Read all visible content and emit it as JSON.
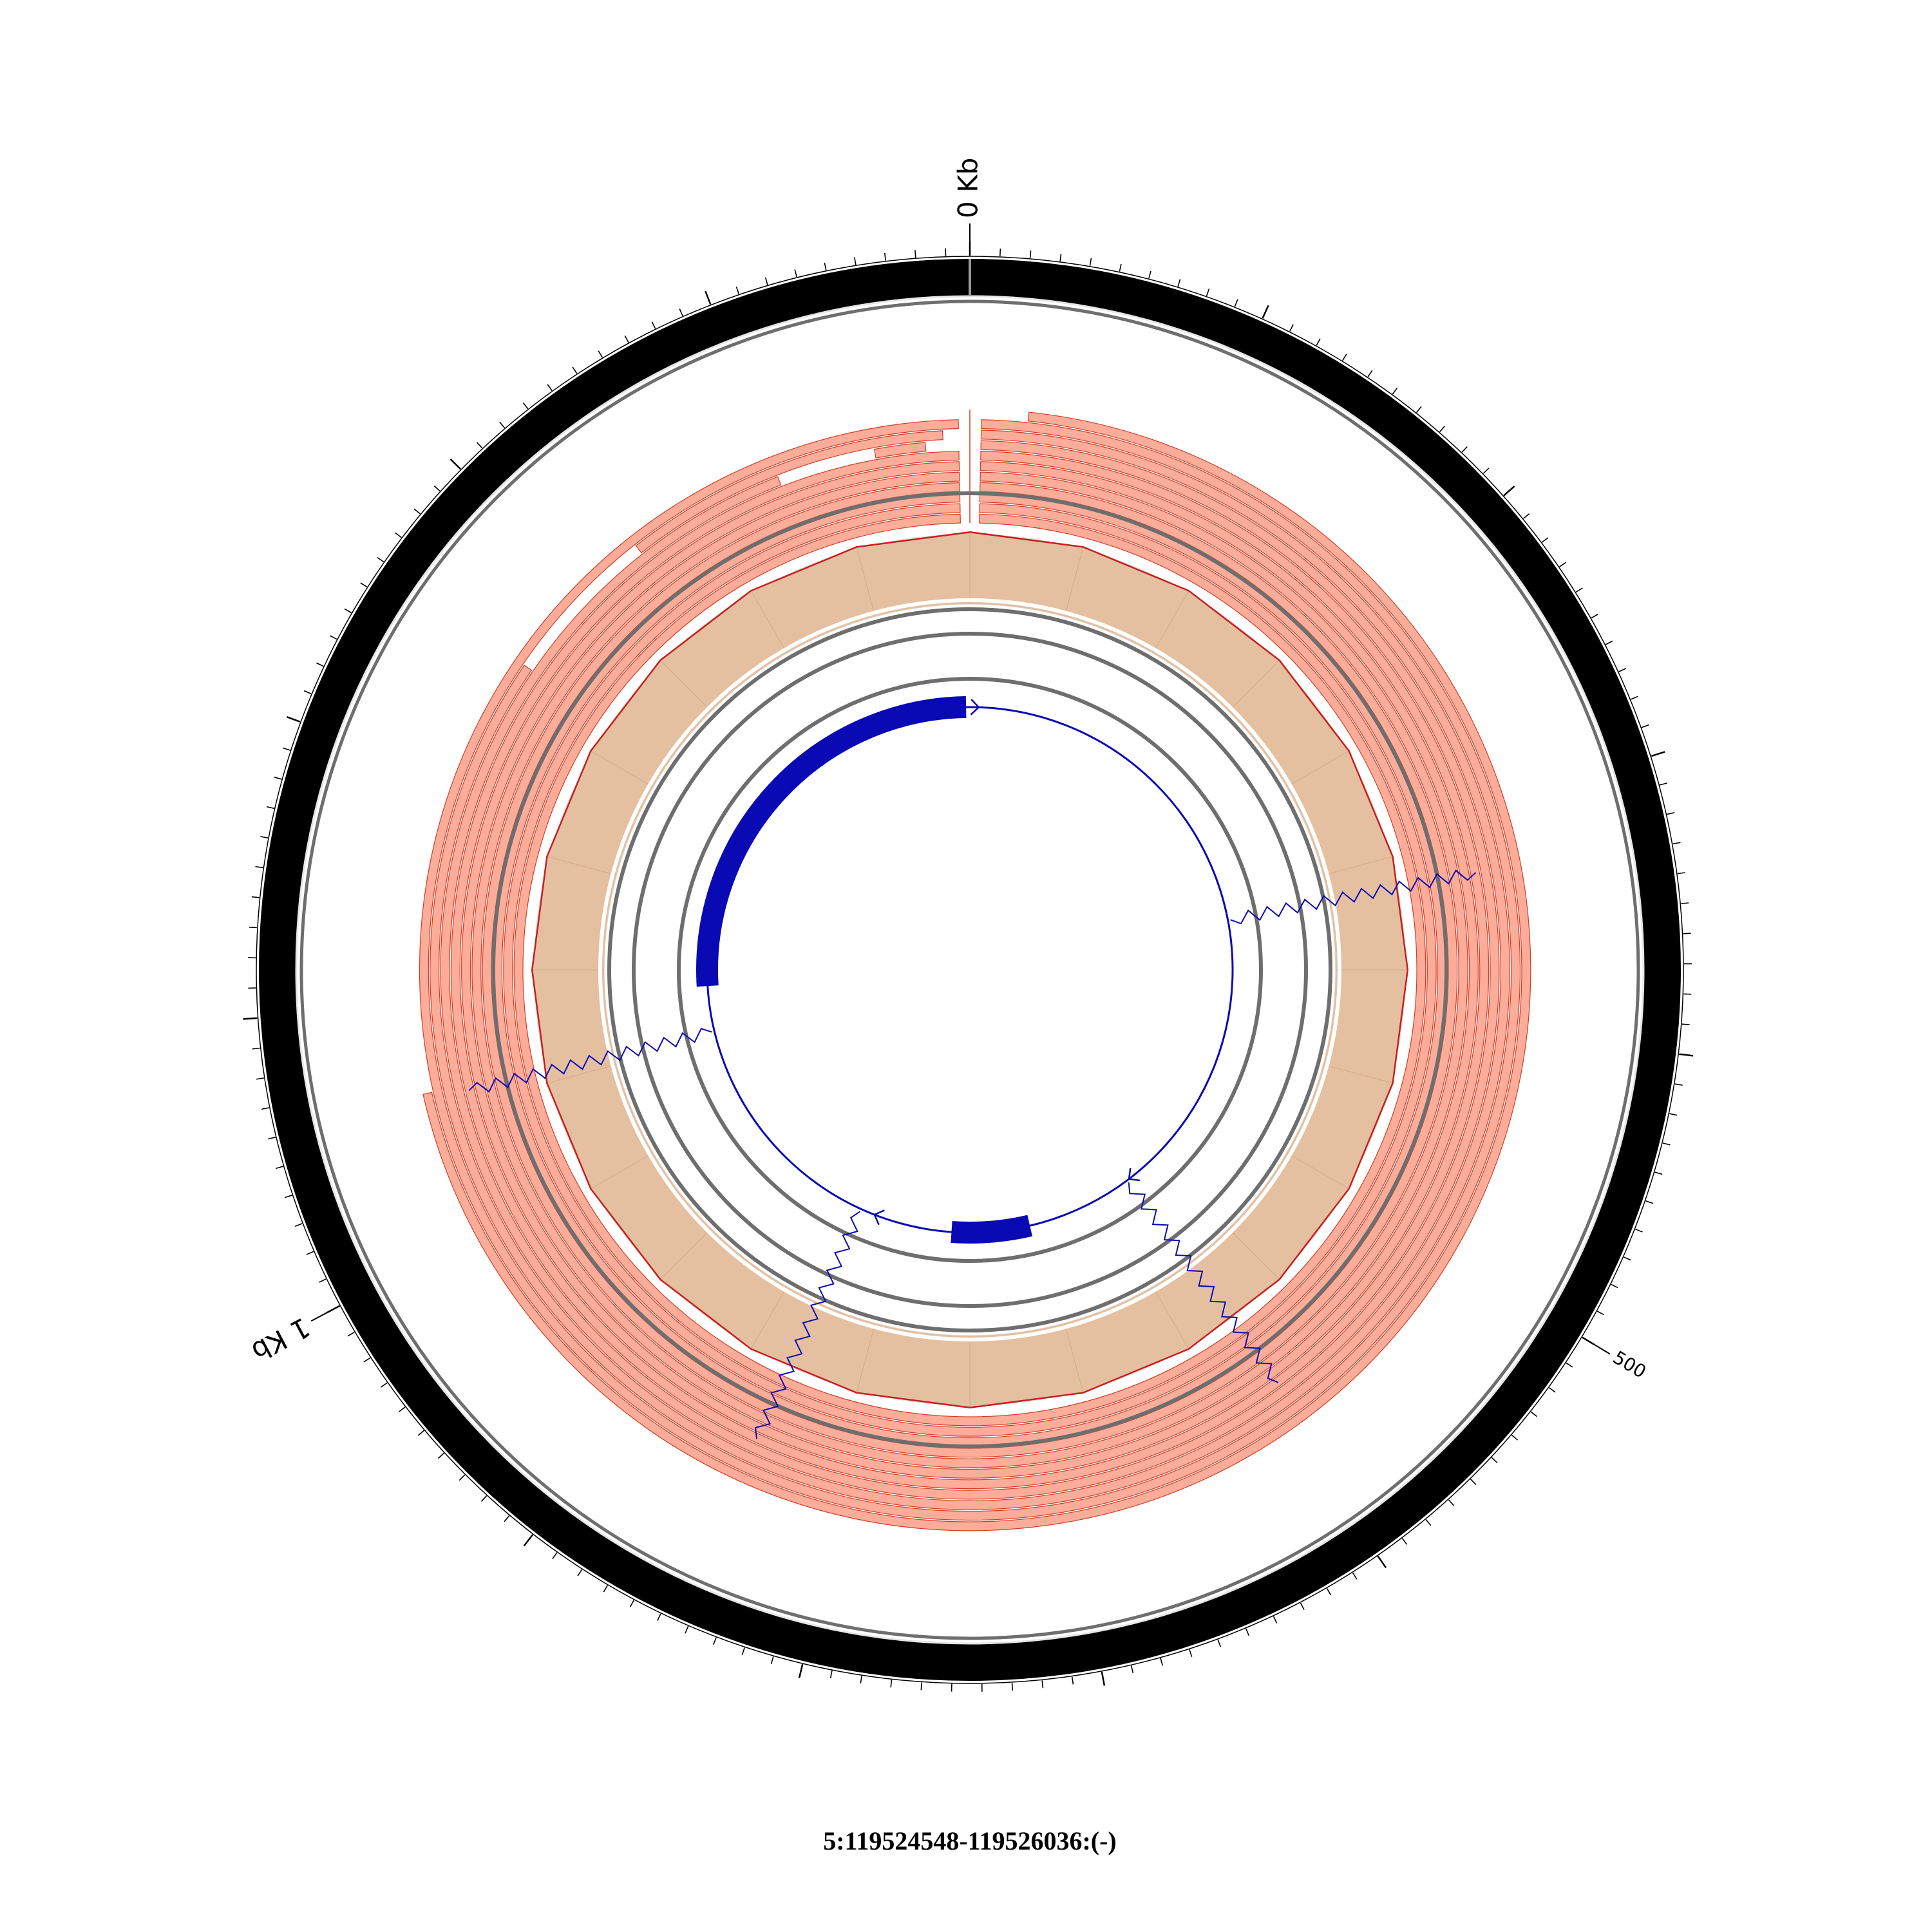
{
  "figure": {
    "caption": "5:119524548-119526036:(-)",
    "colors": {
      "ideogram": "#000000",
      "ring_stroke": "#6e6e6e",
      "reads_fill": "#fbad99",
      "reads_line": "#d23c28",
      "coverage_fill": "#e4c0a0",
      "coverage_outline": "#c81e1e",
      "gene": "#0a0ab4"
    }
  },
  "chart_data": {
    "type": "circos",
    "region": "5:119524548-119526036:(-)",
    "length_bp": 1488,
    "scale_labels": [
      "0 Kb",
      "500",
      "1 Kb"
    ],
    "scale_label_positions_bp": [
      0,
      500,
      1000
    ],
    "tracks": [
      {
        "name": "",
        "kind": "ideogram"
      },
      {
        "name": "",
        "kind": "read-alignments",
        "rows": 11
      },
      {
        "name": "",
        "kind": "coverage"
      },
      {
        "name": "",
        "kind": "gene-model"
      }
    ],
    "coverage_bp": [
      0,
      62,
      124,
      186,
      248,
      310,
      372,
      434,
      496,
      558,
      620,
      682,
      744,
      806,
      868,
      930,
      992,
      1054,
      1116,
      1178,
      1240,
      1302,
      1364,
      1426
    ],
    "coverage_level": [
      0.86,
      0.86,
      0.86,
      0.86,
      0.86,
      0.86,
      0.86,
      0.86,
      0.86,
      0.86,
      0.86,
      0.86,
      0.86,
      0.86,
      0.86,
      0.86,
      0.86,
      0.86,
      0.86,
      0.86,
      0.86,
      0.86,
      0.86,
      0.86
    ],
    "gene_exons_bp": [
      [
        1102,
        1484
      ],
      [
        690,
        760
      ]
    ],
    "gene_junctions_bp": [
      [
        327,
        1060
      ],
      [
        592,
        845
      ]
    ],
    "gene_strand_arrows_bp": [
      8,
      590,
      832,
      1110
    ]
  }
}
